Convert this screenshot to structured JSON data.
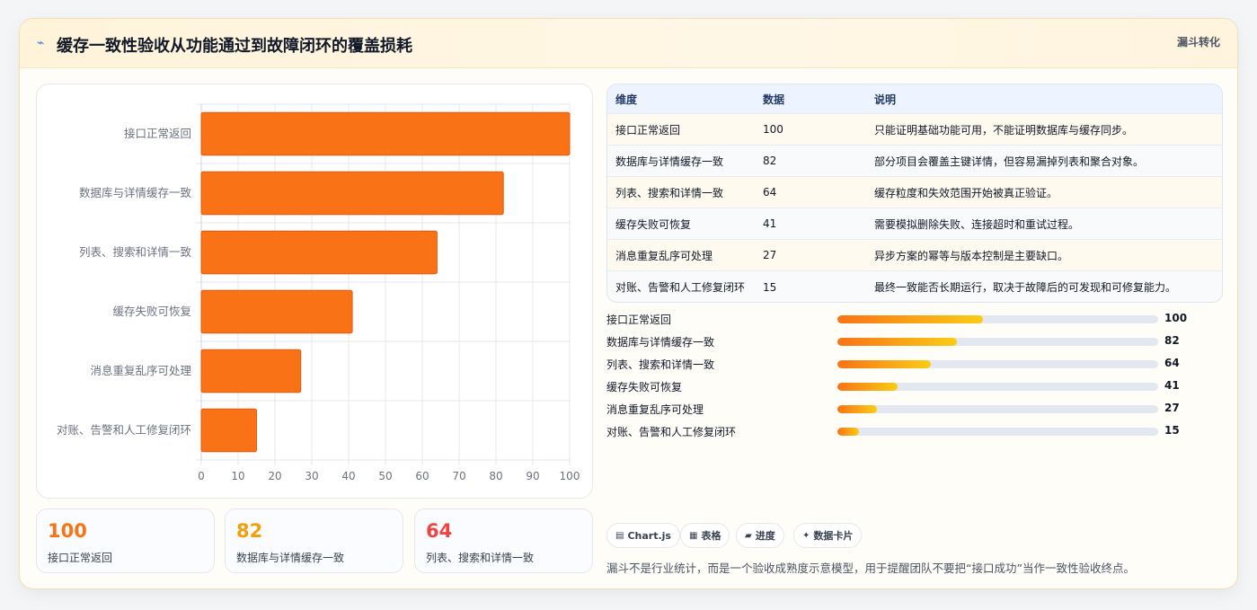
{
  "header": {
    "title": "缓存一致性验收从功能通过到故障闭环的覆盖损耗",
    "badge": "漏斗转化",
    "icon": "lightning-icon"
  },
  "chart_data": {
    "type": "bar",
    "orientation": "horizontal",
    "categories": [
      "接口正常返回",
      "数据库与详情缓存一致",
      "列表、搜索和详情一致",
      "缓存失败可恢复",
      "消息重复乱序可处理",
      "对账、告警和人工修复闭环"
    ],
    "values": [
      100,
      82,
      64,
      41,
      27,
      15
    ],
    "xlim": [
      0,
      100
    ],
    "xticks": [
      0,
      10,
      20,
      30,
      40,
      50,
      60,
      70,
      80,
      90,
      100
    ],
    "grid": true,
    "bar_color": "#f97316"
  },
  "kpis": [
    {
      "value": "100",
      "label": "接口正常返回",
      "color": "#f97316"
    },
    {
      "value": "82",
      "label": "数据库与详情缓存一致",
      "color": "#f59e0b"
    },
    {
      "value": "64",
      "label": "列表、搜索和详情一致",
      "color": "#ef4444"
    }
  ],
  "table": {
    "headers": [
      "维度",
      "数据",
      "说明"
    ],
    "rows": [
      [
        "接口正常返回",
        "100",
        "只能证明基础功能可用，不能证明数据库与缓存同步。"
      ],
      [
        "数据库与详情缓存一致",
        "82",
        "部分项目会覆盖主键详情，但容易漏掉列表和聚合对象。"
      ],
      [
        "列表、搜索和详情一致",
        "64",
        "缓存粒度和失效范围开始被真正验证。"
      ],
      [
        "缓存失败可恢复",
        "41",
        "需要模拟删除失败、连接超时和重试过程。"
      ],
      [
        "消息重复乱序可处理",
        "27",
        "异步方案的幂等与版本控制是主要缺口。"
      ],
      [
        "对账、告警和人工修复闭环",
        "15",
        "最终一致能否长期运行，取决于故障后的可发现和可修复能力。"
      ]
    ]
  },
  "progress": [
    {
      "label": "接口正常返回",
      "value": 100,
      "display": "100"
    },
    {
      "label": "数据库与详情缓存一致",
      "value": 82,
      "display": "82"
    },
    {
      "label": "列表、搜索和详情一致",
      "value": 64,
      "display": "64"
    },
    {
      "label": "缓存失败可恢复",
      "value": 41,
      "display": "41"
    },
    {
      "label": "消息重复乱序可处理",
      "value": 27,
      "display": "27"
    },
    {
      "label": "对账、告警和人工修复闭环",
      "value": 15,
      "display": "15"
    }
  ],
  "progress_max": 220,
  "chips": [
    {
      "icon": "chart-icon",
      "glyph": "▤",
      "label": "Chart.js"
    },
    {
      "icon": "table-icon",
      "glyph": "▦",
      "label": "表格"
    },
    {
      "icon": "progress-icon",
      "glyph": "▰",
      "label": "进度"
    },
    {
      "icon": "card-icon",
      "glyph": "✦",
      "label": "数据卡片"
    }
  ],
  "note": "漏斗不是行业统计，而是一个验收成熟度示意模型，用于提醒团队不要把“接口成功”当作一致性验收终点。"
}
